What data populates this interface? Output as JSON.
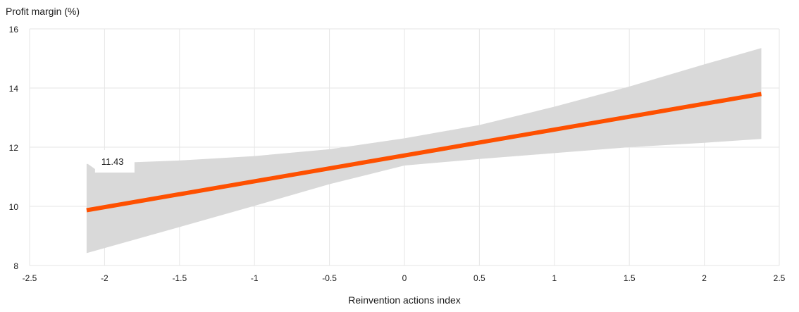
{
  "chart_data": {
    "type": "line",
    "title": "",
    "xlabel": "Reinvention actions index",
    "ylabel": "Profit margin (%)",
    "xlim": [
      -2.5,
      2.5
    ],
    "ylim": [
      8,
      16
    ],
    "x_ticks": [
      -2.5,
      -2,
      -1.5,
      -1,
      -0.5,
      0,
      0.5,
      1,
      1.5,
      2,
      2.5
    ],
    "x_tick_labels": [
      "-2.5",
      "-2",
      "-1.5",
      "-1",
      "-0.5",
      "0",
      "0.5",
      "1",
      "1.5",
      "2",
      "2.5"
    ],
    "y_ticks": [
      8,
      10,
      12,
      14,
      16
    ],
    "y_tick_labels": [
      "8",
      "10",
      "12",
      "14",
      "16"
    ],
    "grid": true,
    "series": [
      {
        "color": "#fe5000",
        "x": [
          -2.12,
          2.38
        ],
        "y": [
          9.87,
          13.8
        ]
      }
    ],
    "confidence_band": {
      "color": "#d9d9d9",
      "x": [
        -2.12,
        -1.5,
        -1.0,
        -0.5,
        0.0,
        0.5,
        1.0,
        1.5,
        2.0,
        2.38
      ],
      "upper": [
        11.43,
        11.55,
        11.7,
        11.93,
        12.3,
        12.75,
        13.37,
        14.05,
        14.8,
        15.35
      ],
      "lower": [
        8.42,
        9.3,
        10.02,
        10.75,
        11.38,
        11.6,
        11.8,
        12.0,
        12.15,
        12.28
      ]
    },
    "tooltip": {
      "x": -2.12,
      "y": 11.43,
      "label": "11.43"
    }
  }
}
